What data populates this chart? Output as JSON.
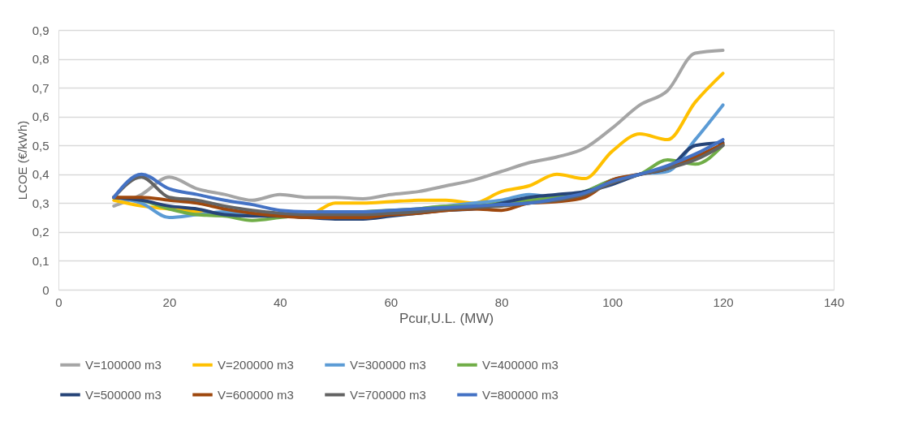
{
  "chart_data": {
    "type": "line",
    "xlabel": "Pcur,U.L. (MW)",
    "ylabel": "LCOE (€/kWh)",
    "x": [
      10,
      15,
      20,
      25,
      30,
      35,
      40,
      45,
      50,
      55,
      60,
      65,
      70,
      75,
      80,
      85,
      90,
      95,
      100,
      105,
      110,
      115,
      120
    ],
    "xlim": [
      0,
      140
    ],
    "xticks": [
      0,
      20,
      40,
      60,
      80,
      100,
      120,
      140
    ],
    "ylim": [
      0,
      0.9
    ],
    "yticks": [
      0,
      {
        "value": 0.1,
        "label": "0,1"
      },
      {
        "value": 0.2,
        "label": "0,2"
      },
      {
        "value": 0.3,
        "label": "0,3"
      },
      {
        "value": 0.4,
        "label": "0,4"
      },
      {
        "value": 0.5,
        "label": "0,5"
      },
      {
        "value": 0.6,
        "label": "0,6"
      },
      {
        "value": 0.7,
        "label": "0,7"
      },
      {
        "value": 0.8,
        "label": "0,8"
      },
      {
        "value": 0.9,
        "label": "0,9"
      }
    ],
    "grid": "y",
    "legend": "bottom",
    "marker": "none",
    "line_style": "solid",
    "series": [
      {
        "name": "V=100000 m3",
        "color": "#a5a5a5",
        "values": [
          0.29,
          0.33,
          0.39,
          0.35,
          0.33,
          0.31,
          0.33,
          0.32,
          0.32,
          0.315,
          0.33,
          0.34,
          0.36,
          0.38,
          0.41,
          0.44,
          0.46,
          0.49,
          0.56,
          0.64,
          0.69,
          0.82,
          0.83
        ]
      },
      {
        "name": "V=200000 m3",
        "color": "#ffc000",
        "values": [
          0.31,
          0.29,
          0.28,
          0.27,
          0.26,
          0.26,
          0.26,
          0.26,
          0.3,
          0.3,
          0.305,
          0.31,
          0.31,
          0.3,
          0.34,
          0.36,
          0.4,
          0.385,
          0.48,
          0.54,
          0.52,
          0.65,
          0.75
        ]
      },
      {
        "name": "V=300000 m3",
        "color": "#5b9bd5",
        "values": [
          0.32,
          0.3,
          0.25,
          0.26,
          0.27,
          0.26,
          0.26,
          0.26,
          0.265,
          0.27,
          0.27,
          0.28,
          0.29,
          0.3,
          0.31,
          0.33,
          0.32,
          0.34,
          0.38,
          0.4,
          0.41,
          0.52,
          0.64
        ]
      },
      {
        "name": "V=400000 m3",
        "color": "#70ad47",
        "values": [
          0.32,
          0.31,
          0.28,
          0.26,
          0.255,
          0.24,
          0.25,
          0.26,
          0.265,
          0.27,
          0.275,
          0.28,
          0.29,
          0.29,
          0.3,
          0.31,
          0.32,
          0.34,
          0.38,
          0.4,
          0.45,
          0.435,
          0.5
        ]
      },
      {
        "name": "V=500000 m3",
        "color": "#264478",
        "values": [
          0.32,
          0.31,
          0.29,
          0.28,
          0.26,
          0.255,
          0.255,
          0.25,
          0.245,
          0.245,
          0.255,
          0.265,
          0.275,
          0.28,
          0.3,
          0.32,
          0.33,
          0.34,
          0.365,
          0.4,
          0.42,
          0.5,
          0.51
        ]
      },
      {
        "name": "V=600000 m3",
        "color": "#9e480e",
        "values": [
          0.32,
          0.32,
          0.31,
          0.3,
          0.28,
          0.265,
          0.255,
          0.25,
          0.25,
          0.25,
          0.26,
          0.265,
          0.275,
          0.28,
          0.275,
          0.3,
          0.305,
          0.32,
          0.38,
          0.4,
          0.42,
          0.46,
          0.505
        ]
      },
      {
        "name": "V=700000 m3",
        "color": "#636363",
        "values": [
          0.32,
          0.39,
          0.32,
          0.31,
          0.29,
          0.275,
          0.265,
          0.26,
          0.26,
          0.26,
          0.265,
          0.27,
          0.28,
          0.285,
          0.29,
          0.3,
          0.31,
          0.33,
          0.37,
          0.4,
          0.42,
          0.45,
          0.5
        ]
      },
      {
        "name": "V=800000 m3",
        "color": "#4472c4",
        "values": [
          0.32,
          0.4,
          0.35,
          0.33,
          0.31,
          0.295,
          0.275,
          0.27,
          0.27,
          0.27,
          0.275,
          0.28,
          0.285,
          0.29,
          0.295,
          0.3,
          0.315,
          0.335,
          0.375,
          0.4,
          0.43,
          0.47,
          0.52
        ]
      }
    ]
  }
}
